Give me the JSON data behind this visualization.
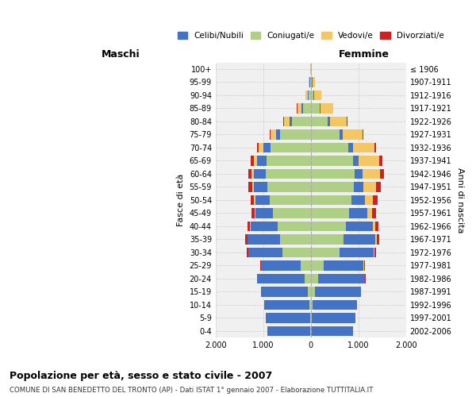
{
  "age_groups": [
    "100+",
    "95-99",
    "90-94",
    "85-89",
    "80-84",
    "75-79",
    "70-74",
    "65-69",
    "60-64",
    "55-59",
    "50-54",
    "45-49",
    "40-44",
    "35-39",
    "30-34",
    "25-29",
    "20-24",
    "15-19",
    "10-14",
    "5-9",
    "0-4"
  ],
  "birth_years": [
    "≤ 1906",
    "1907-1911",
    "1912-1916",
    "1917-1921",
    "1922-1926",
    "1927-1931",
    "1932-1936",
    "1937-1941",
    "1942-1946",
    "1947-1951",
    "1952-1956",
    "1957-1961",
    "1962-1966",
    "1967-1971",
    "1972-1976",
    "1977-1981",
    "1982-1986",
    "1987-1991",
    "1992-1996",
    "1997-2001",
    "2002-2006"
  ],
  "males": {
    "celibi": [
      5,
      10,
      15,
      30,
      50,
      80,
      150,
      200,
      250,
      280,
      300,
      380,
      580,
      680,
      720,
      830,
      1000,
      980,
      950,
      930,
      900
    ],
    "coniugati": [
      5,
      15,
      50,
      160,
      400,
      650,
      850,
      930,
      950,
      920,
      870,
      790,
      690,
      650,
      590,
      220,
      130,
      60,
      30,
      15,
      8
    ],
    "vedovi": [
      3,
      15,
      50,
      90,
      120,
      110,
      90,
      70,
      50,
      35,
      20,
      12,
      8,
      6,
      4,
      2,
      1,
      1,
      0,
      0,
      0
    ],
    "divorziati": [
      0,
      1,
      4,
      8,
      12,
      18,
      35,
      55,
      70,
      80,
      75,
      60,
      50,
      40,
      25,
      12,
      6,
      3,
      1,
      0,
      0
    ]
  },
  "females": {
    "nubili": [
      5,
      10,
      15,
      25,
      40,
      70,
      100,
      130,
      170,
      210,
      280,
      380,
      560,
      660,
      710,
      840,
      980,
      960,
      930,
      910,
      870
    ],
    "coniugate": [
      5,
      20,
      60,
      180,
      360,
      600,
      780,
      880,
      920,
      900,
      860,
      810,
      740,
      690,
      610,
      270,
      160,
      90,
      45,
      22,
      12
    ],
    "vedove": [
      15,
      55,
      140,
      260,
      360,
      420,
      450,
      430,
      360,
      260,
      165,
      92,
      55,
      30,
      18,
      8,
      4,
      2,
      1,
      0,
      0
    ],
    "divorziate": [
      0,
      2,
      6,
      12,
      18,
      22,
      45,
      72,
      90,
      100,
      92,
      82,
      72,
      55,
      35,
      18,
      8,
      4,
      2,
      0,
      0
    ]
  },
  "colors": {
    "celibi_nubili": "#4472C4",
    "coniugati": "#AECF85",
    "vedovi": "#F5C764",
    "divorziati": "#CC2222"
  },
  "title": "Popolazione per età, sesso e stato civile - 2007",
  "subtitle": "COMUNE DI SAN BENEDETTO DEL TRONTO (AP) - Dati ISTAT 1° gennaio 2007 - Elaborazione TUTTITALIA.IT",
  "xlabel_left": "Maschi",
  "xlabel_right": "Femmine",
  "ylabel_left": "Fasce di età",
  "ylabel_right": "Anni di nascita",
  "xlim": 2000,
  "legend_labels": [
    "Celibi/Nubili",
    "Coniugati/e",
    "Vedovi/e",
    "Divorziati/e"
  ],
  "background_color": "#FFFFFF",
  "bar_background": "#F0F0F0"
}
